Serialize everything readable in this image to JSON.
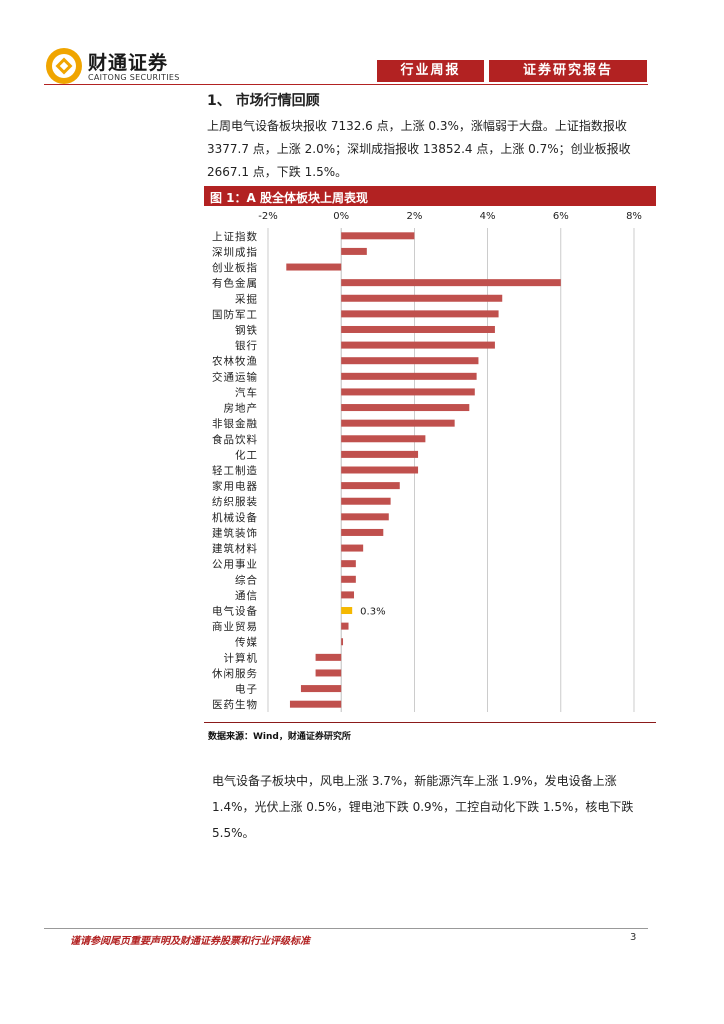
{
  "header": {
    "logo_cn": "财通证券",
    "logo_en": "CAITONG SECURITIES",
    "tab_weekly": "行业周报",
    "tab_report": "证券研究报告"
  },
  "section": {
    "title": "1、 市场行情回顾",
    "para1": "上周电气设备板块报收 7132.6 点，上涨 0.3%，涨幅弱于大盘。上证指数报收 3377.7 点，上涨 2.0%；深圳成指报收 13852.4 点，上涨 0.7%；创业板报收 2667.1 点，下跌 1.5%。",
    "para2": "电气设备子板块中，风电上涨 3.7%，新能源汽车上涨 1.9%，发电设备上涨 1.4%，光伏上涨 0.5%，锂电池下跌 0.9%，工控自动化下跌 1.5%，核电下跌 5.5%。"
  },
  "figure": {
    "title": "图 1：A 股全体板块上周表现",
    "source": "数据来源：Wind，财通证券研究所"
  },
  "chart_data": {
    "type": "bar",
    "orientation": "horizontal",
    "title": "图 1：A 股全体板块上周表现",
    "xlim": [
      -2,
      8
    ],
    "ticks": [
      "-2%",
      "0%",
      "2%",
      "4%",
      "6%",
      "8%"
    ],
    "tick_values": [
      -2,
      0,
      2,
      4,
      6,
      8
    ],
    "categories": [
      "上证指数",
      "深圳成指",
      "创业板指",
      "有色金属",
      "采掘",
      "国防军工",
      "钢铁",
      "银行",
      "农林牧渔",
      "交通运输",
      "汽车",
      "房地产",
      "非银金融",
      "食品饮料",
      "化工",
      "轻工制造",
      "家用电器",
      "纺织服装",
      "机械设备",
      "建筑装饰",
      "建筑材料",
      "公用事业",
      "综合",
      "通信",
      "电气设备",
      "商业贸易",
      "传媒",
      "计算机",
      "休闲服务",
      "电子",
      "医药生物"
    ],
    "values": [
      2.0,
      0.7,
      -1.5,
      6.0,
      4.4,
      4.3,
      4.2,
      4.2,
      3.75,
      3.7,
      3.65,
      3.5,
      3.1,
      2.3,
      2.1,
      2.1,
      1.6,
      1.35,
      1.3,
      1.15,
      0.6,
      0.4,
      0.4,
      0.35,
      0.3,
      0.2,
      0.05,
      -0.7,
      -0.7,
      -1.1,
      -1.4
    ],
    "highlight_index": 24,
    "highlight_label": "0.3%",
    "colors": {
      "bar": "#c0504d",
      "highlight": "#f5b800",
      "grid": "#bfbfbf"
    }
  },
  "footer": {
    "disclaimer": "谨请参阅尾页重要声明及财通证券股票和行业评级标准",
    "page": "3"
  }
}
